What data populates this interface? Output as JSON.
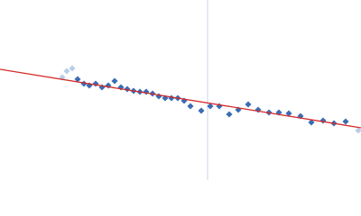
{
  "chart_data": {
    "type": "scatter",
    "xlim": [
      0,
      400
    ],
    "ylim": [
      0,
      200
    ],
    "vline": {
      "x": 230,
      "color": "#c9d5ec"
    },
    "series": [
      {
        "mode": "markers",
        "color": "#b8cde8",
        "x": [
          69,
          74,
          80,
          397
        ],
        "values": [
          114,
          121,
          124,
          55
        ]
      },
      {
        "mode": "markers",
        "color": "#3a6cb4",
        "x": [
          86,
          93,
          99,
          106,
          113,
          120,
          127,
          134,
          141,
          148,
          155,
          162,
          169,
          176,
          183,
          190,
          197,
          204,
          211,
          223,
          233,
          243,
          254,
          264,
          275,
          286,
          298,
          309,
          320,
          333,
          345,
          358,
          370,
          383
        ],
        "values": [
          112,
          107,
          105,
          107,
          103,
          105,
          110,
          103,
          101,
          99,
          98,
          98,
          96,
          93,
          91,
          91,
          91,
          88,
          82,
          77,
          82,
          82,
          73,
          78,
          84,
          78,
          75,
          75,
          74,
          71,
          64,
          66,
          63,
          65
        ]
      },
      {
        "mode": "line",
        "color": "#d42a2a",
        "x": [
          0,
          400
        ],
        "values": [
          123,
          58
        ]
      }
    ]
  }
}
